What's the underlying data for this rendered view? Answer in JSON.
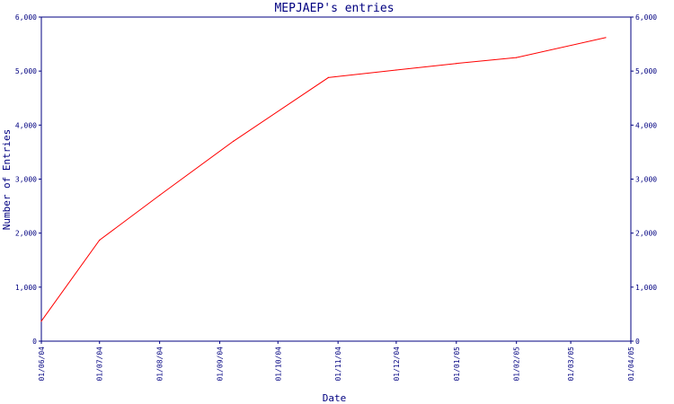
{
  "chart_data": {
    "type": "line",
    "title": "MEPJAEP's entries",
    "xlabel": "Date",
    "ylabel": "Number of Entries",
    "ylim": [
      0,
      6000
    ],
    "xlim": [
      "2004-06-01",
      "2005-04-01"
    ],
    "y_ticks": [
      "0",
      "1,000",
      "2,000",
      "3,000",
      "4,000",
      "5,000",
      "6,000"
    ],
    "y_tick_values": [
      0,
      1000,
      2000,
      3000,
      4000,
      5000,
      6000
    ],
    "x_ticks": [
      "01/06/04",
      "01/07/04",
      "01/08/04",
      "01/09/04",
      "01/10/04",
      "01/11/04",
      "01/12/04",
      "01/01/05",
      "01/02/05",
      "01/03/05",
      "01/04/05"
    ],
    "x_tick_values": [
      "2004-06-01",
      "2004-07-01",
      "2004-08-01",
      "2004-09-01",
      "2004-10-01",
      "2004-11-01",
      "2004-12-01",
      "2005-01-01",
      "2005-02-01",
      "2005-03-01",
      "2005-04-01"
    ],
    "grid": false,
    "right_axis": true,
    "series": [
      {
        "color": "#ff0000",
        "points": [
          {
            "x": "2004-06-01",
            "y": 370
          },
          {
            "x": "2004-07-01",
            "y": 1870
          },
          {
            "x": "2004-08-01",
            "y": 2700
          },
          {
            "x": "2004-09-08",
            "y": 3700
          },
          {
            "x": "2004-10-27",
            "y": 4880
          },
          {
            "x": "2004-12-01",
            "y": 5020
          },
          {
            "x": "2005-01-01",
            "y": 5140
          },
          {
            "x": "2005-02-01",
            "y": 5250
          },
          {
            "x": "2005-03-19",
            "y": 5620
          }
        ]
      }
    ]
  },
  "colors": {
    "axis": "#000080",
    "text": "#000080",
    "line": "#ff0000",
    "background": "#ffffff"
  }
}
